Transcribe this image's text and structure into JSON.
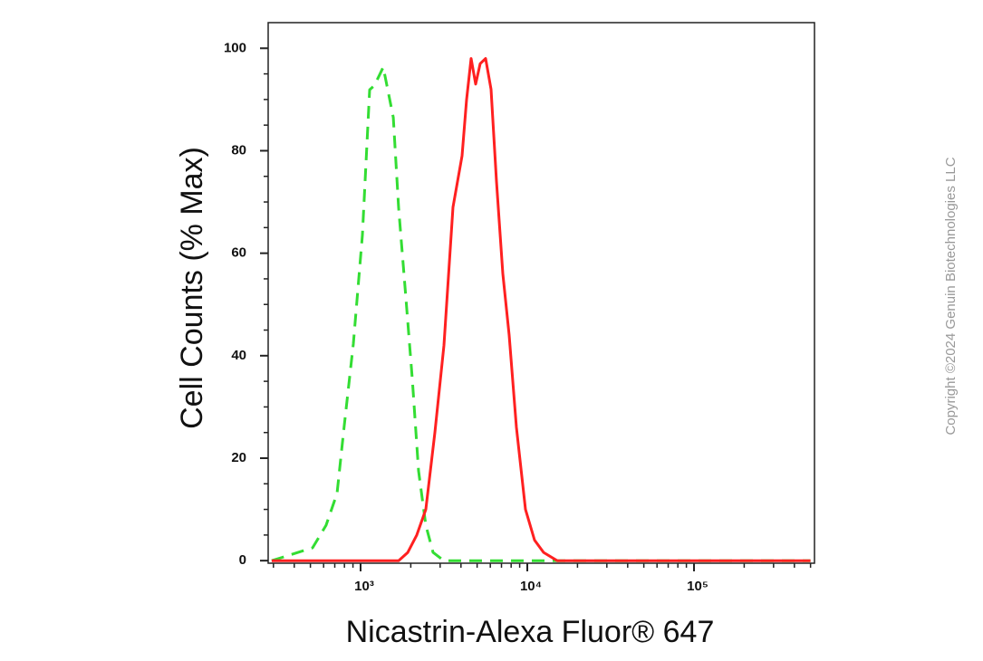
{
  "chart_data": {
    "type": "line",
    "xlabel": "Nicastrin-Alexa Fluor® 647",
    "ylabel": "Cell Counts (% Max)",
    "watermark": "Copyright ©2024 Genuin Biotechnologies LLC",
    "xscale": "log",
    "xlim": [
      279,
      528000
    ],
    "ylim": [
      -0.5,
      105
    ],
    "xticks": [
      {
        "value": 1000,
        "label": "10³"
      },
      {
        "value": 10000,
        "label": "10⁴"
      },
      {
        "value": 100000,
        "label": "10⁵"
      }
    ],
    "xminorticks": [
      300,
      400,
      500,
      600,
      700,
      800,
      900,
      2000,
      3000,
      4000,
      5000,
      6000,
      7000,
      8000,
      9000,
      20000,
      30000,
      40000,
      50000,
      60000,
      70000,
      80000,
      90000,
      200000,
      300000,
      400000,
      500000
    ],
    "yticks": [
      0,
      20,
      40,
      60,
      80,
      100
    ],
    "yminorticks": [
      5,
      10,
      15,
      25,
      30,
      35,
      45,
      50,
      55,
      65,
      70,
      75,
      85,
      90,
      95
    ],
    "series": [
      {
        "color": "#33dd33",
        "dashed": true,
        "x": [
          293,
          515,
          621,
          722,
          798,
          905,
          1025,
          1133,
          1206,
          1285,
          1367,
          1456,
          1570,
          1691,
          1869,
          2042,
          2228,
          2462,
          2722,
          3162,
          500000
        ],
        "values": [
          0,
          2.5,
          6.9,
          13.1,
          26.4,
          42.3,
          63.5,
          91.9,
          92.7,
          94.5,
          96.3,
          91.9,
          86.5,
          68.8,
          51.3,
          35.4,
          17.5,
          6.9,
          1.6,
          0,
          0
        ]
      },
      {
        "color": "#ff2020",
        "dashed": false,
        "x": [
          293,
          1691,
          1918,
          2173,
          2462,
          2791,
          3162,
          3583,
          4061,
          4325,
          4603,
          4900,
          5213,
          5623,
          6063,
          6535,
          7129,
          7787,
          8605,
          9750,
          11050,
          12520,
          15100,
          500000
        ],
        "values": [
          0,
          0,
          1.6,
          5,
          10,
          25,
          42,
          69,
          79,
          90,
          98,
          93,
          97,
          98,
          92,
          74,
          56,
          44,
          26,
          10,
          4,
          1.6,
          0,
          0
        ]
      }
    ]
  }
}
